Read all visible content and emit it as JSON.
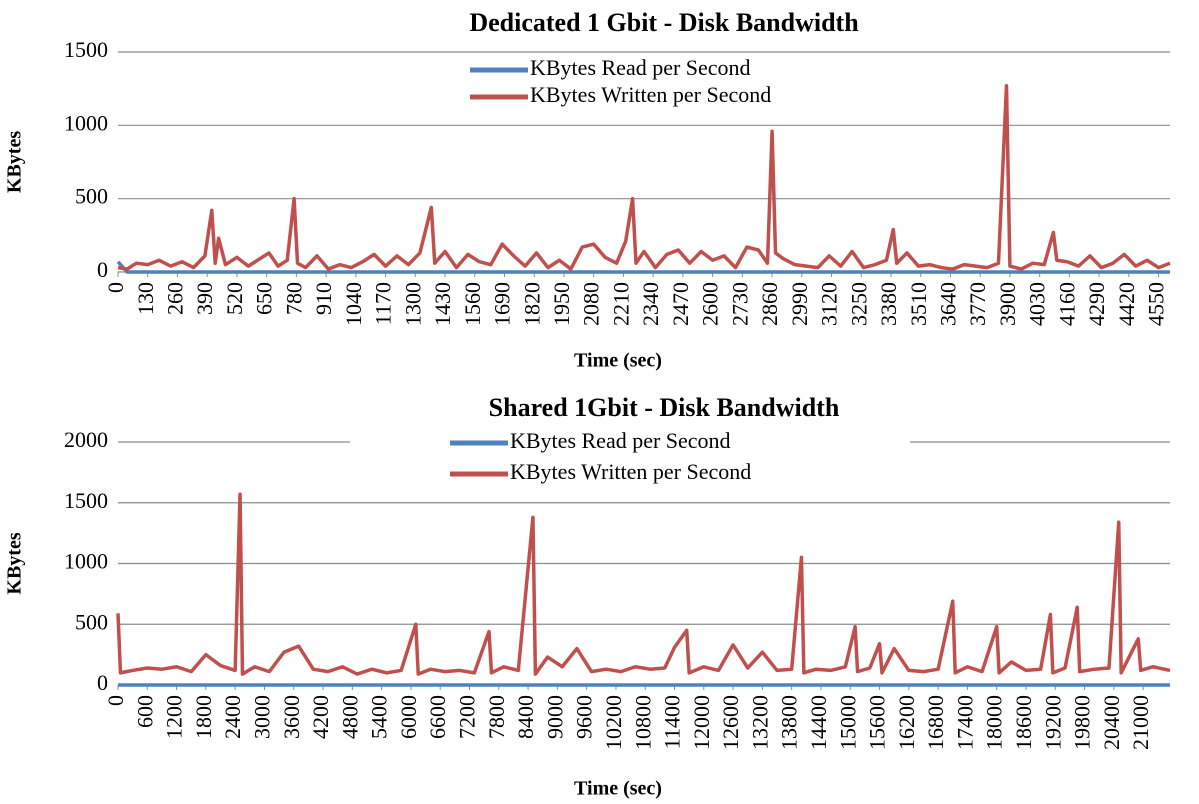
{
  "chart_data": [
    {
      "type": "line",
      "title": "Dedicated 1 Gbit - Disk Bandwidth",
      "xlabel": "Time (sec)",
      "ylabel": "KBytes",
      "x": [
        0,
        40,
        80,
        130,
        180,
        230,
        280,
        330,
        380,
        410,
        425,
        440,
        470,
        520,
        570,
        620,
        660,
        700,
        740,
        770,
        785,
        820,
        870,
        920,
        970,
        1020,
        1070,
        1120,
        1170,
        1220,
        1270,
        1320,
        1370,
        1385,
        1430,
        1480,
        1530,
        1580,
        1630,
        1680,
        1730,
        1780,
        1830,
        1880,
        1930,
        1980,
        2030,
        2080,
        2130,
        2180,
        2220,
        2250,
        2265,
        2300,
        2350,
        2400,
        2450,
        2500,
        2550,
        2600,
        2650,
        2700,
        2750,
        2800,
        2840,
        2860,
        2875,
        2910,
        2960,
        3010,
        3060,
        3110,
        3160,
        3210,
        3260,
        3310,
        3360,
        3390,
        3405,
        3450,
        3500,
        3550,
        3600,
        3650,
        3700,
        3750,
        3800,
        3850,
        3885,
        3900,
        3950,
        4000,
        4050,
        4090,
        4105,
        4150,
        4200,
        4250,
        4300,
        4350,
        4400,
        4450,
        4500,
        4550,
        4600
      ],
      "series": [
        {
          "name": "KBytes Read per Second",
          "color": "#4f81bd",
          "values": [
            70,
            0,
            0,
            0,
            0,
            0,
            0,
            0,
            0,
            0,
            0,
            0,
            0,
            0,
            0,
            0,
            0,
            0,
            0,
            0,
            0,
            0,
            0,
            0,
            0,
            0,
            0,
            0,
            0,
            0,
            0,
            0,
            0,
            0,
            0,
            0,
            0,
            0,
            0,
            0,
            0,
            0,
            0,
            0,
            0,
            0,
            0,
            0,
            0,
            0,
            0,
            0,
            0,
            0,
            0,
            0,
            0,
            0,
            0,
            0,
            0,
            0,
            0,
            0,
            0,
            0,
            0,
            0,
            0,
            0,
            0,
            0,
            0,
            0,
            0,
            0,
            0,
            0,
            0,
            0,
            0,
            0,
            0,
            0,
            0,
            0,
            0,
            0,
            0,
            0,
            0,
            0,
            0,
            0,
            0,
            0,
            0,
            0,
            0,
            0,
            0,
            0,
            0,
            0,
            0
          ]
        },
        {
          "name": "KBytes Written per Second",
          "color": "#c0504d",
          "values": [
            30,
            20,
            60,
            50,
            80,
            40,
            70,
            30,
            110,
            420,
            60,
            230,
            50,
            100,
            40,
            90,
            130,
            40,
            80,
            500,
            60,
            30,
            110,
            20,
            50,
            30,
            70,
            120,
            40,
            110,
            50,
            130,
            440,
            60,
            140,
            30,
            120,
            70,
            50,
            190,
            110,
            40,
            130,
            30,
            80,
            20,
            170,
            190,
            100,
            60,
            210,
            500,
            60,
            140,
            30,
            120,
            150,
            60,
            140,
            80,
            110,
            30,
            170,
            150,
            60,
            960,
            130,
            90,
            50,
            40,
            30,
            110,
            40,
            140,
            30,
            50,
            80,
            290,
            60,
            130,
            40,
            50,
            30,
            20,
            50,
            40,
            30,
            60,
            1270,
            40,
            20,
            60,
            50,
            270,
            80,
            70,
            40,
            110,
            30,
            60,
            120,
            40,
            80,
            30,
            60
          ]
        }
      ],
      "xlim": [
        0,
        4600
      ],
      "ylim": [
        0,
        1500
      ],
      "yticks": [
        0,
        500,
        1000,
        1500
      ],
      "xticks": [
        0,
        130,
        260,
        390,
        520,
        650,
        780,
        910,
        1040,
        1170,
        1300,
        1430,
        1560,
        1690,
        1820,
        1950,
        2080,
        2210,
        2340,
        2470,
        2600,
        2730,
        2860,
        2990,
        3120,
        3250,
        3380,
        3510,
        3640,
        3770,
        3900,
        4030,
        4160,
        4290,
        4420,
        4550
      ],
      "grid": true,
      "legend": "top"
    },
    {
      "type": "line",
      "title": "Shared 1Gbit - Disk Bandwidth",
      "xlabel": "Time (sec)",
      "ylabel": "KBytes",
      "x": [
        0,
        50,
        300,
        600,
        900,
        1200,
        1500,
        1800,
        2100,
        2400,
        2500,
        2550,
        2800,
        3100,
        3400,
        3700,
        4000,
        4300,
        4600,
        4900,
        5200,
        5500,
        5800,
        6100,
        6150,
        6400,
        6700,
        7000,
        7300,
        7600,
        7650,
        7900,
        8200,
        8500,
        8550,
        8800,
        9100,
        9400,
        9700,
        10000,
        10300,
        10600,
        10900,
        11200,
        11400,
        11650,
        11700,
        12000,
        12300,
        12600,
        12900,
        13200,
        13500,
        13800,
        14000,
        14050,
        14300,
        14600,
        14900,
        15100,
        15150,
        15400,
        15600,
        15650,
        15900,
        16200,
        16500,
        16800,
        17100,
        17150,
        17400,
        17700,
        18000,
        18050,
        18300,
        18600,
        18900,
        19100,
        19150,
        19400,
        19650,
        19700,
        20000,
        20300,
        20500,
        20550,
        20900,
        20950,
        21200,
        21550
      ],
      "series": [
        {
          "name": "KBytes Read per Second",
          "color": "#4f81bd",
          "values": [
            0,
            0,
            0,
            0,
            0,
            0,
            0,
            0,
            0,
            0,
            0,
            0,
            0,
            0,
            0,
            0,
            0,
            0,
            0,
            0,
            0,
            0,
            0,
            0,
            0,
            0,
            0,
            0,
            0,
            0,
            0,
            0,
            0,
            0,
            0,
            0,
            0,
            0,
            0,
            0,
            0,
            0,
            0,
            0,
            0,
            0,
            0,
            0,
            0,
            0,
            0,
            0,
            0,
            0,
            0,
            0,
            0,
            0,
            0,
            0,
            0,
            0,
            0,
            0,
            0,
            0,
            0,
            0,
            0,
            0,
            0,
            0,
            0,
            0,
            0,
            0,
            0,
            0,
            0,
            0,
            0,
            0,
            0,
            0,
            0,
            0,
            0,
            0,
            0,
            0
          ]
        },
        {
          "name": "KBytes Written per Second",
          "color": "#c0504d",
          "values": [
            590,
            100,
            120,
            140,
            130,
            150,
            110,
            250,
            160,
            120,
            1570,
            90,
            150,
            110,
            270,
            320,
            130,
            110,
            150,
            90,
            130,
            100,
            120,
            500,
            90,
            130,
            110,
            120,
            100,
            440,
            100,
            150,
            120,
            1380,
            90,
            230,
            150,
            300,
            110,
            130,
            110,
            150,
            130,
            140,
            310,
            450,
            100,
            150,
            120,
            330,
            140,
            270,
            120,
            130,
            1050,
            100,
            130,
            120,
            150,
            480,
            110,
            140,
            340,
            100,
            300,
            120,
            110,
            130,
            690,
            100,
            150,
            110,
            480,
            100,
            190,
            120,
            130,
            580,
            100,
            140,
            640,
            110,
            130,
            140,
            1340,
            100,
            380,
            120,
            150,
            120
          ]
        }
      ],
      "xlim": [
        0,
        21550
      ],
      "ylim": [
        0,
        2000
      ],
      "yticks": [
        0,
        500,
        1000,
        1500,
        2000
      ],
      "xticks": [
        0,
        600,
        1200,
        1800,
        2400,
        3000,
        3600,
        4200,
        4800,
        5400,
        6000,
        6600,
        7200,
        7800,
        8400,
        9000,
        9600,
        10200,
        10800,
        11400,
        12000,
        12600,
        13200,
        13800,
        14400,
        15000,
        15600,
        16200,
        16800,
        17400,
        18000,
        18600,
        19200,
        19800,
        20400,
        21000
      ],
      "grid": true,
      "legend": "top"
    }
  ]
}
